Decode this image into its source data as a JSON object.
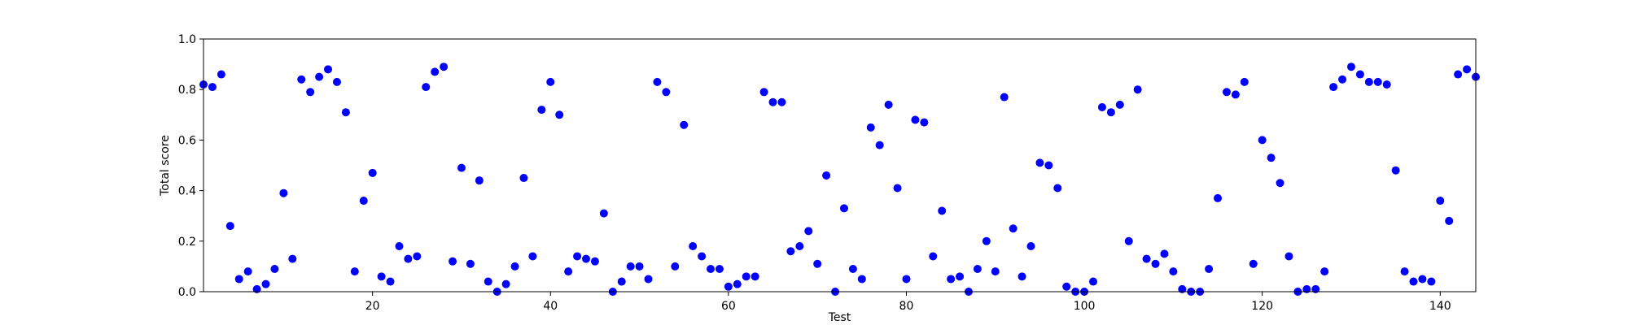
{
  "chart_data": {
    "type": "scatter",
    "title": "",
    "xlabel": "Test",
    "ylabel": "Total score",
    "xlim": [
      1,
      144
    ],
    "ylim": [
      0,
      1.0
    ],
    "grid": false,
    "marker_color": "#0000ff",
    "x_ticks": [
      20,
      40,
      60,
      80,
      100,
      120,
      140
    ],
    "y_ticks": [
      0.0,
      0.2,
      0.4,
      0.6,
      0.8,
      1.0
    ],
    "x_tick_labels": [
      "20",
      "40",
      "60",
      "80",
      "100",
      "120",
      "140"
    ],
    "y_tick_labels": [
      "0.0",
      "0.2",
      "0.4",
      "0.6",
      "0.8",
      "1.0"
    ],
    "series": [
      {
        "x": [
          1,
          2,
          3,
          4,
          5,
          6,
          7,
          8,
          9,
          10,
          11,
          12,
          13,
          14,
          15,
          16,
          17,
          18,
          19,
          20,
          21,
          22,
          23,
          24,
          25,
          26,
          27,
          28,
          29,
          30,
          31,
          32,
          33,
          34,
          35,
          36,
          37,
          38,
          39,
          40,
          41,
          42,
          43,
          44,
          45,
          46,
          47,
          48,
          49,
          50,
          51,
          52,
          53,
          54,
          55,
          56,
          57,
          58,
          59,
          60,
          61,
          62,
          63,
          64,
          65,
          66,
          67,
          68,
          69,
          70,
          71,
          72,
          73,
          74,
          75,
          76,
          77,
          78,
          79,
          80,
          81,
          82,
          83,
          84,
          85,
          86,
          87,
          88,
          89,
          90,
          91,
          92,
          93,
          94,
          95,
          96,
          97,
          98,
          99,
          100,
          101,
          102,
          103,
          104,
          105,
          106,
          107,
          108,
          109,
          110,
          111,
          112,
          113,
          114,
          115,
          116,
          117,
          118,
          119,
          120,
          121,
          122,
          123,
          124,
          125,
          126,
          127,
          128,
          129,
          130,
          131,
          132,
          133,
          134,
          135,
          136,
          137,
          138,
          139,
          140,
          141,
          142,
          143,
          144
        ],
        "y": [
          0.82,
          0.81,
          0.86,
          0.26,
          0.05,
          0.08,
          0.01,
          0.03,
          0.09,
          0.39,
          0.13,
          0.84,
          0.79,
          0.85,
          0.88,
          0.83,
          0.71,
          0.08,
          0.36,
          0.47,
          0.06,
          0.04,
          0.18,
          0.13,
          0.14,
          0.81,
          0.87,
          0.89,
          0.12,
          0.49,
          0.11,
          0.44,
          0.04,
          0.0,
          0.03,
          0.1,
          0.45,
          0.14,
          0.72,
          0.83,
          0.7,
          0.08,
          0.14,
          0.13,
          0.12,
          0.31,
          0.0,
          0.04,
          0.1,
          0.1,
          0.05,
          0.83,
          0.79,
          0.1,
          0.66,
          0.18,
          0.14,
          0.09,
          0.09,
          0.02,
          0.03,
          0.06,
          0.06,
          0.79,
          0.75,
          0.75,
          0.16,
          0.18,
          0.24,
          0.11,
          0.46,
          0.0,
          0.33,
          0.09,
          0.05,
          0.65,
          0.58,
          0.74,
          0.41,
          0.05,
          0.68,
          0.67,
          0.14,
          0.32,
          0.05,
          0.06,
          0.0,
          0.09,
          0.2,
          0.08,
          0.77,
          0.25,
          0.06,
          0.18,
          0.51,
          0.5,
          0.41,
          0.02,
          0.0,
          0.0,
          0.04,
          0.73,
          0.71,
          0.74,
          0.2,
          0.8,
          0.13,
          0.11,
          0.15,
          0.08,
          0.01,
          0.0,
          0.0,
          0.09,
          0.37,
          0.79,
          0.78,
          0.83,
          0.11,
          0.6,
          0.53,
          0.43,
          0.14,
          0.0,
          0.01,
          0.01,
          0.08,
          0.81,
          0.84,
          0.89,
          0.86,
          0.83,
          0.83,
          0.82,
          0.48,
          0.08,
          0.04,
          0.05,
          0.04,
          0.36,
          0.28,
          0.86,
          0.88,
          0.85
        ]
      }
    ]
  }
}
